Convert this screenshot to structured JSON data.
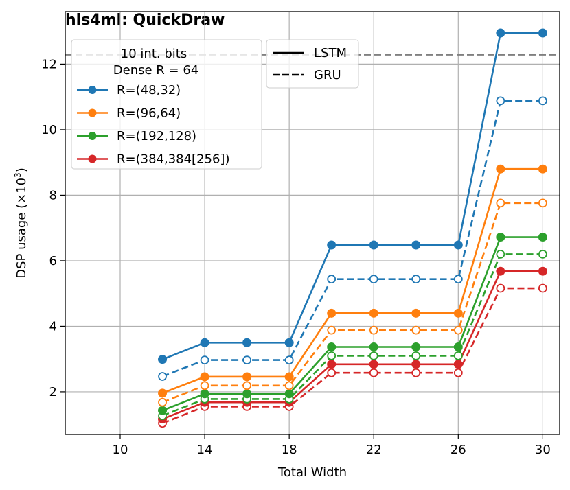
{
  "chart_data": {
    "type": "line",
    "title": "hls4ml: QuickDraw",
    "xlabel": "Total Width",
    "ylabel": "DSP usage (×10",
    "ylabel_sup": "3",
    "ylabel_close": ")",
    "xlim": [
      7.4,
      30.8
    ],
    "ylim": [
      0.7,
      13.6
    ],
    "xticks": [
      10,
      14,
      18,
      22,
      26,
      30
    ],
    "yticks": [
      2,
      4,
      6,
      8,
      10,
      12
    ],
    "grid": true,
    "x": [
      12,
      14,
      16,
      18,
      20,
      22,
      24,
      26,
      28,
      30
    ],
    "reference_line": {
      "y": 12.29,
      "style": "dashed",
      "color": "#808080"
    },
    "legend_header": [
      "10 int. bits",
      "Dense R = 64"
    ],
    "legend_styles": [
      {
        "name": "LSTM",
        "style": "solid"
      },
      {
        "name": "GRU",
        "style": "dashed"
      }
    ],
    "series": [
      {
        "name": "R=(48,32)",
        "color": "#1f77b4",
        "lstm": [
          2.99,
          3.5,
          3.5,
          3.5,
          6.48,
          6.48,
          6.48,
          6.48,
          12.95,
          12.95
        ],
        "gru": [
          2.47,
          2.97,
          2.97,
          2.97,
          5.44,
          5.44,
          5.44,
          5.44,
          10.88,
          10.88
        ]
      },
      {
        "name": "R=(96,64)",
        "color": "#ff7f0e",
        "lstm": [
          1.96,
          2.46,
          2.46,
          2.46,
          4.4,
          4.4,
          4.4,
          4.4,
          8.8,
          8.8
        ],
        "gru": [
          1.68,
          2.19,
          2.19,
          2.19,
          3.88,
          3.88,
          3.88,
          3.88,
          7.76,
          7.76
        ]
      },
      {
        "name": "R=(192,128)",
        "color": "#2ca02c",
        "lstm": [
          1.43,
          1.94,
          1.94,
          1.94,
          3.37,
          3.37,
          3.37,
          3.37,
          6.72,
          6.72
        ],
        "gru": [
          1.27,
          1.78,
          1.78,
          1.78,
          3.1,
          3.1,
          3.1,
          3.1,
          6.2,
          6.2
        ]
      },
      {
        "name": "R=(384,384[256])",
        "color": "#d62728",
        "lstm": [
          1.17,
          1.68,
          1.68,
          1.68,
          2.84,
          2.84,
          2.84,
          2.84,
          5.68,
          5.68
        ],
        "gru": [
          1.04,
          1.55,
          1.55,
          1.55,
          2.58,
          2.58,
          2.58,
          2.58,
          5.16,
          5.16
        ]
      }
    ]
  }
}
